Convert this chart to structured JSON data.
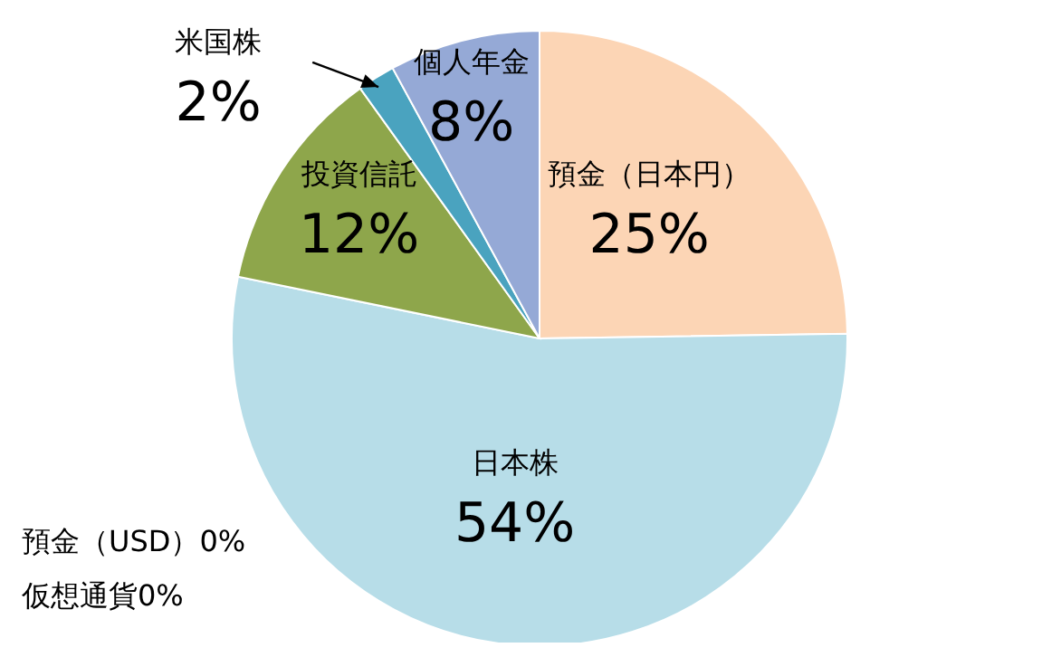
{
  "chart_data": {
    "type": "pie",
    "categories": [
      "預金（日本円）",
      "日本株",
      "預金（USD）",
      "仮想通貨",
      "投資信託",
      "米国株",
      "個人年金"
    ],
    "values": [
      25,
      54,
      0,
      0,
      12,
      2,
      8
    ],
    "value_labels": [
      "25%",
      "54%",
      "0%",
      "0%",
      "12%",
      "2%",
      "8%"
    ],
    "colors": [
      "#fcd5b5",
      "#b7dde8",
      "#e46c0a",
      "#7f7f7f",
      "#8ea64b",
      "#4aa3bf",
      "#95a9d6"
    ]
  }
}
